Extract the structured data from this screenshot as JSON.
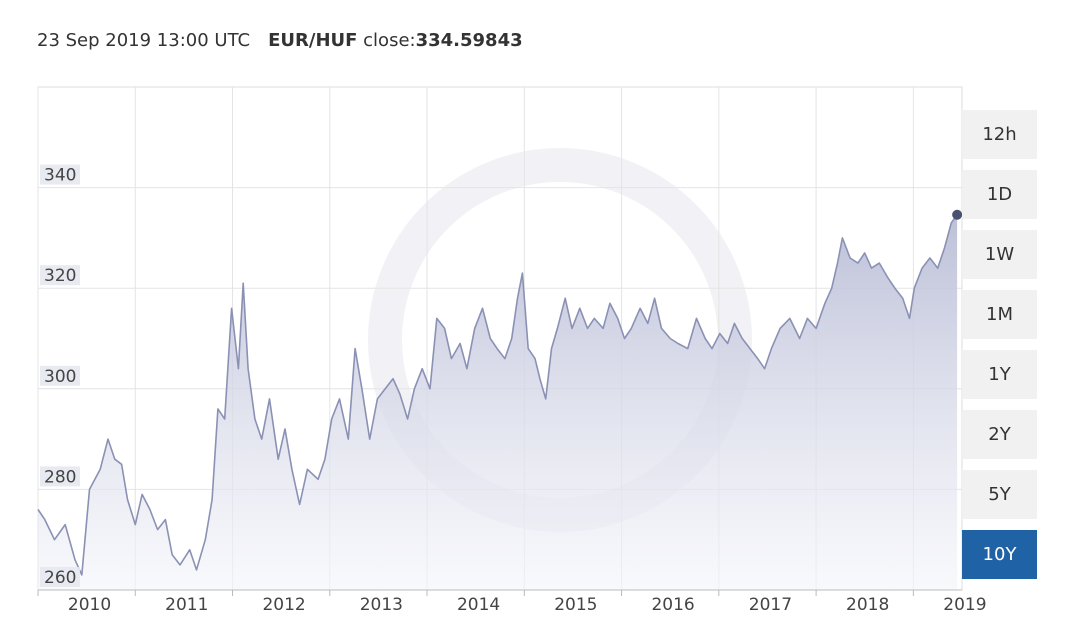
{
  "header": {
    "timestamp": "23 Sep 2019 13:00 UTC",
    "pair": "EUR/HUF",
    "close_label": "close:",
    "close_value": "334.59843"
  },
  "ranges": {
    "options": [
      "12h",
      "1D",
      "1W",
      "1M",
      "1Y",
      "2Y",
      "5Y",
      "10Y"
    ],
    "selected": 7
  },
  "chart_data": {
    "type": "area",
    "color": "#8a91b4",
    "x": [
      2010.0,
      2010.07,
      2010.17,
      2010.28,
      2010.38,
      2010.45,
      2010.53,
      2010.64,
      2010.72,
      2010.79,
      2010.86,
      2010.92,
      2011.0,
      2011.07,
      2011.15,
      2011.23,
      2011.31,
      2011.38,
      2011.46,
      2011.56,
      2011.63,
      2011.72,
      2011.79,
      2011.85,
      2011.92,
      2011.99,
      2012.06,
      2012.11,
      2012.16,
      2012.23,
      2012.3,
      2012.38,
      2012.47,
      2012.54,
      2012.61,
      2012.69,
      2012.77,
      2012.88,
      2012.95,
      2013.02,
      2013.1,
      2013.19,
      2013.26,
      2013.33,
      2013.41,
      2013.49,
      2013.57,
      2013.65,
      2013.72,
      2013.8,
      2013.87,
      2013.95,
      2014.03,
      2014.1,
      2014.18,
      2014.25,
      2014.34,
      2014.41,
      2014.49,
      2014.57,
      2014.65,
      2014.72,
      2014.8,
      2014.87,
      2014.93,
      2014.98,
      2015.04,
      2015.11,
      2015.16,
      2015.22,
      2015.28,
      2015.34,
      2015.42,
      2015.49,
      2015.57,
      2015.65,
      2015.72,
      2015.81,
      2015.88,
      2015.96,
      2016.03,
      2016.1,
      2016.19,
      2016.27,
      2016.34,
      2016.41,
      2016.5,
      2016.58,
      2016.68,
      2016.77,
      2016.86,
      2016.93,
      2017.01,
      2017.09,
      2017.16,
      2017.24,
      2017.32,
      2017.4,
      2017.47,
      2017.54,
      2017.63,
      2017.73,
      2017.83,
      2017.91,
      2018.0,
      2018.09,
      2018.16,
      2018.22,
      2018.27,
      2018.35,
      2018.43,
      2018.5,
      2018.57,
      2018.65,
      2018.74,
      2018.81,
      2018.89,
      2018.96,
      2019.01,
      2019.09,
      2019.17,
      2019.25,
      2019.32,
      2019.39,
      2019.45
    ],
    "values": [
      276,
      274,
      270,
      273,
      266,
      263,
      280,
      284,
      290,
      286,
      285,
      278,
      273,
      279,
      276,
      272,
      274,
      267,
      265,
      268,
      264,
      270,
      278,
      296,
      294,
      316,
      304,
      321,
      304,
      294,
      290,
      298,
      286,
      292,
      284,
      277,
      284,
      282,
      286,
      294,
      298,
      290,
      308,
      300,
      290,
      298,
      300,
      302,
      299,
      294,
      300,
      304,
      300,
      314,
      312,
      306,
      309,
      304,
      312,
      316,
      310,
      308,
      306,
      310,
      318,
      323,
      308,
      306,
      302,
      298,
      308,
      312,
      318,
      312,
      316,
      312,
      314,
      312,
      317,
      314,
      310,
      312,
      316,
      313,
      318,
      312,
      310,
      309,
      308,
      314,
      310,
      308,
      311,
      309,
      313,
      310,
      308,
      306,
      304,
      308,
      312,
      314,
      310,
      314,
      312,
      317,
      320,
      325,
      330,
      326,
      325,
      327,
      324,
      325,
      322,
      320,
      318,
      314,
      320,
      324,
      326,
      324,
      328,
      333,
      334.59843
    ],
    "xlim": [
      2010,
      2019.5
    ],
    "xticks": [
      2010,
      2011,
      2012,
      2013,
      2014,
      2015,
      2016,
      2017,
      2018,
      2019
    ],
    "ylim": [
      260,
      360
    ],
    "yticks": [
      260,
      280,
      300,
      320,
      340
    ],
    "grid": true
  }
}
